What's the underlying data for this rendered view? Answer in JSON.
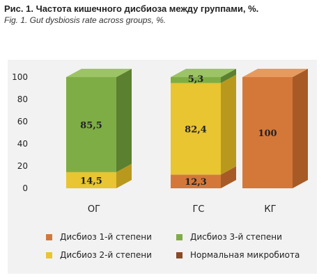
{
  "header": {
    "title_ru": "Рис. 1. Частота кишечного дисбиоза между группами, %.",
    "title_en": "Fig. 1. Gut dysbiosis rate across groups, %."
  },
  "chart_data": {
    "type": "bar",
    "stacked": true,
    "three_d": true,
    "categories": [
      "ОГ",
      "ГС",
      "КГ"
    ],
    "series": [
      {
        "name": "Дисбиоз 1-й степени",
        "color": "#d4783a",
        "side": "#a85a26",
        "top": "#e69a5e",
        "values": [
          0,
          12.3,
          100
        ],
        "labels": [
          "",
          "12,3",
          "100"
        ]
      },
      {
        "name": "Дисбиоз 2-й степени",
        "color": "#e8c531",
        "side": "#b9991d",
        "top": "#f0d666",
        "values": [
          14.5,
          82.4,
          0
        ],
        "labels": [
          "14,5",
          "82,4",
          ""
        ]
      },
      {
        "name": "Дисбиоз 3-й степени",
        "color": "#7fad45",
        "side": "#5b8030",
        "top": "#9cc466",
        "values": [
          85.5,
          5.3,
          0
        ],
        "labels": [
          "85,5",
          "5,3",
          ""
        ]
      },
      {
        "name": "Нормальная микробиота",
        "color": "#8a4a22",
        "side": "#6a3518",
        "top": "#7a4020",
        "values": [
          0,
          0,
          0
        ],
        "labels": [
          "",
          "",
          ""
        ]
      }
    ],
    "ylim": [
      0,
      100
    ],
    "yticks": [
      0,
      20,
      40,
      60,
      80,
      100
    ],
    "xlabel": "",
    "ylabel": "",
    "legend_position": "bottom"
  }
}
